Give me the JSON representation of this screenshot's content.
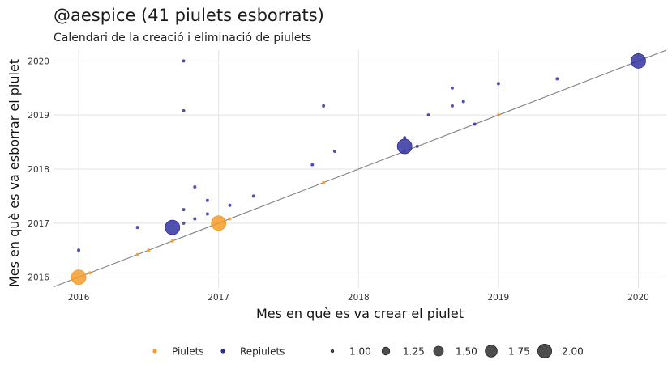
{
  "title": "@aespice (41 piulets esborrats)",
  "subtitle": "Calendari de la creació i eliminació de piulets",
  "chart_data": {
    "type": "scatter",
    "xlabel": "Mes en què es va crear el piulet",
    "ylabel": "Mes en què es va esborrar el piulet",
    "xlim": [
      2015.82,
      2020.2
    ],
    "ylim": [
      2015.8,
      2020.2
    ],
    "xticks": [
      2016,
      2017,
      2018,
      2019,
      2020
    ],
    "yticks": [
      2016,
      2017,
      2018,
      2019,
      2020
    ],
    "tick_labels": [
      "2016",
      "2017",
      "2018",
      "2019",
      "2020"
    ],
    "grid": true,
    "reference_line": "y = x",
    "legend_position": "bottom",
    "colors": {
      "Piulets": "#f59a23",
      "Repiulets": "#2b2b9c",
      "reference": "#808080"
    },
    "series": [
      {
        "name": "Piulets",
        "points": [
          {
            "x": 2016.0,
            "y": 2016.0,
            "size": 2
          },
          {
            "x": 2016.08,
            "y": 2016.08,
            "size": 1
          },
          {
            "x": 2016.42,
            "y": 2016.42,
            "size": 1
          },
          {
            "x": 2016.5,
            "y": 2016.5,
            "size": 1
          },
          {
            "x": 2016.67,
            "y": 2016.67,
            "size": 1
          },
          {
            "x": 2017.0,
            "y": 2017.0,
            "size": 2
          },
          {
            "x": 2017.08,
            "y": 2017.08,
            "size": 1
          },
          {
            "x": 2017.75,
            "y": 2017.75,
            "size": 1
          },
          {
            "x": 2019.0,
            "y": 2019.0,
            "size": 1
          }
        ]
      },
      {
        "name": "Repiulets",
        "points": [
          {
            "x": 2016.0,
            "y": 2016.5,
            "size": 1
          },
          {
            "x": 2016.42,
            "y": 2016.92,
            "size": 1
          },
          {
            "x": 2016.67,
            "y": 2016.92,
            "size": 2
          },
          {
            "x": 2016.75,
            "y": 2017.0,
            "size": 1
          },
          {
            "x": 2016.75,
            "y": 2017.25,
            "size": 1
          },
          {
            "x": 2016.75,
            "y": 2019.08,
            "size": 1
          },
          {
            "x": 2016.75,
            "y": 2020.0,
            "size": 1
          },
          {
            "x": 2016.83,
            "y": 2017.08,
            "size": 1
          },
          {
            "x": 2016.83,
            "y": 2017.67,
            "size": 1
          },
          {
            "x": 2016.92,
            "y": 2017.17,
            "size": 1
          },
          {
            "x": 2016.92,
            "y": 2017.42,
            "size": 1
          },
          {
            "x": 2017.08,
            "y": 2017.33,
            "size": 1
          },
          {
            "x": 2017.25,
            "y": 2017.5,
            "size": 1
          },
          {
            "x": 2017.67,
            "y": 2018.08,
            "size": 1
          },
          {
            "x": 2017.75,
            "y": 2019.17,
            "size": 1
          },
          {
            "x": 2017.83,
            "y": 2018.33,
            "size": 1
          },
          {
            "x": 2018.33,
            "y": 2018.42,
            "size": 2
          },
          {
            "x": 2018.33,
            "y": 2018.58,
            "size": 1
          },
          {
            "x": 2018.42,
            "y": 2018.42,
            "size": 1
          },
          {
            "x": 2018.5,
            "y": 2019.0,
            "size": 1
          },
          {
            "x": 2018.67,
            "y": 2019.17,
            "size": 1
          },
          {
            "x": 2018.67,
            "y": 2019.5,
            "size": 1
          },
          {
            "x": 2018.75,
            "y": 2019.25,
            "size": 1
          },
          {
            "x": 2018.83,
            "y": 2018.83,
            "size": 1
          },
          {
            "x": 2019.0,
            "y": 2019.58,
            "size": 1
          },
          {
            "x": 2019.42,
            "y": 2019.67,
            "size": 1
          },
          {
            "x": 2020.0,
            "y": 2020.0,
            "size": 2
          }
        ]
      }
    ],
    "legend": {
      "color_entries": [
        "Piulets",
        "Repiulets"
      ],
      "size_entries": [
        "1.00",
        "1.25",
        "1.50",
        "1.75",
        "2.00"
      ]
    }
  }
}
